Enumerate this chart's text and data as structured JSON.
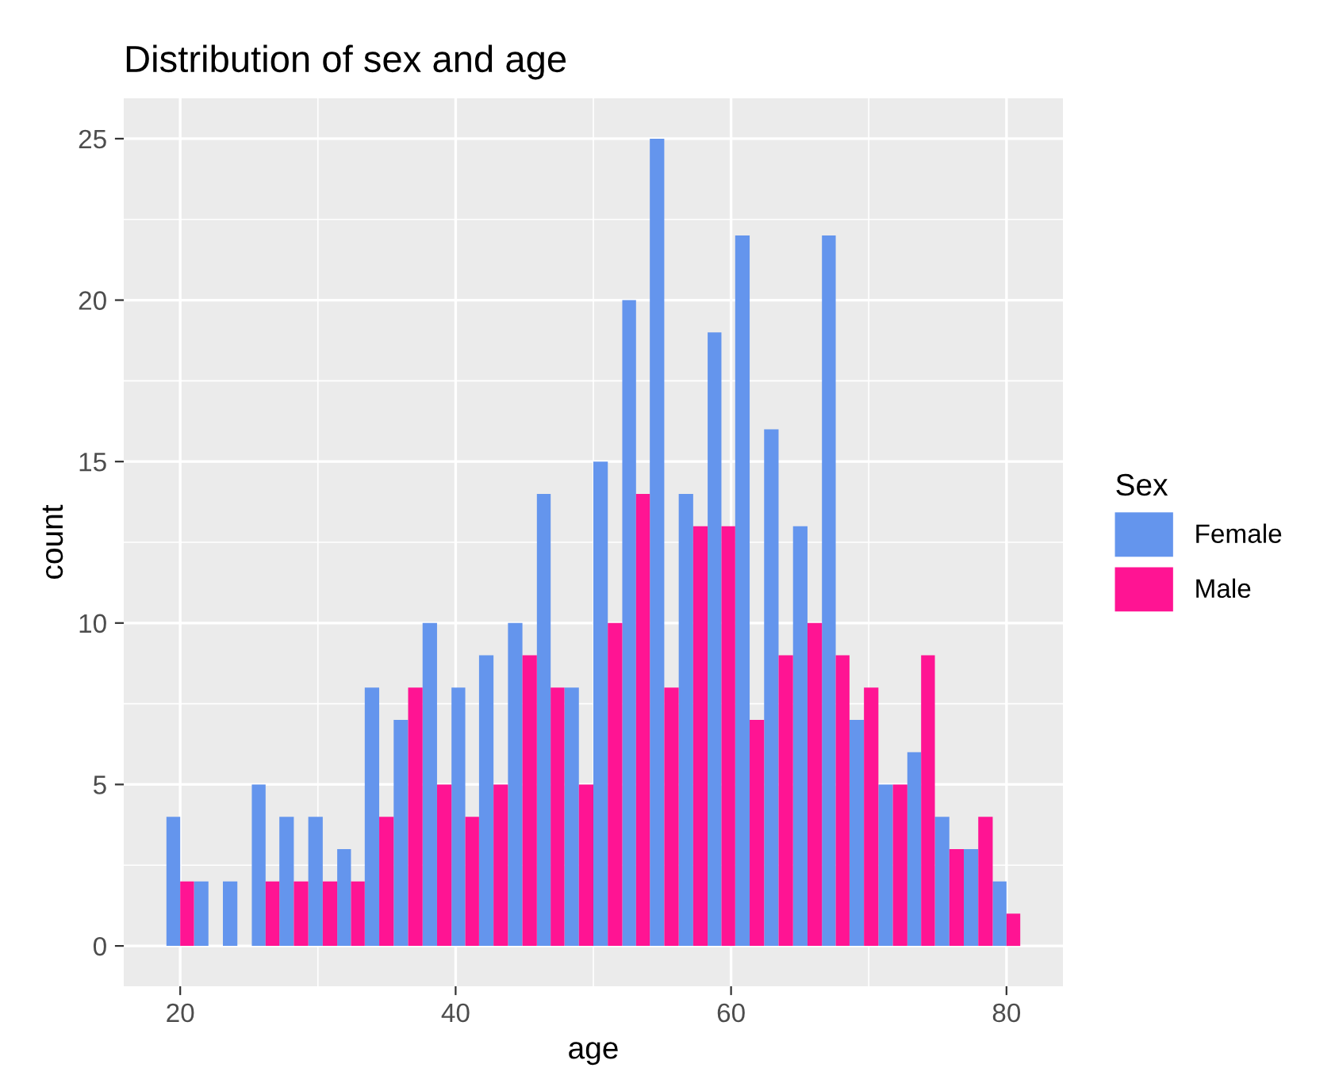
{
  "chart_data": {
    "type": "histogram",
    "title": "Distribution of sex and age",
    "xlabel": "age",
    "ylabel": "count",
    "legend_title": "Sex",
    "bins": [
      19.0,
      21.0,
      23.1,
      25.2,
      27.2,
      29.3,
      31.4,
      33.4,
      35.5,
      37.6,
      39.7,
      41.7,
      43.8,
      45.9,
      47.9,
      50.0,
      52.1,
      54.1,
      56.2,
      58.3,
      60.3,
      62.4,
      64.5,
      66.6,
      68.6,
      70.7,
      72.8,
      74.8,
      76.9,
      79.0,
      81.0
    ],
    "series": [
      {
        "name": "Female",
        "color": "#6495ed",
        "values": [
          4,
          2,
          2,
          5,
          4,
          4,
          3,
          8,
          7,
          10,
          8,
          9,
          10,
          14,
          8,
          15,
          20,
          25,
          14,
          19,
          22,
          16,
          13,
          22,
          7,
          5,
          6,
          4,
          3,
          2
        ]
      },
      {
        "name": "Male",
        "color": "#ff1493",
        "values": [
          2,
          0,
          0,
          2,
          2,
          2,
          2,
          4,
          8,
          5,
          4,
          5,
          9,
          8,
          5,
          10,
          14,
          8,
          13,
          13,
          7,
          9,
          10,
          9,
          8,
          5,
          9,
          3,
          4,
          1
        ]
      }
    ],
    "xlim": [
      15.9,
      84.1
    ],
    "xticks": [
      20,
      40,
      60,
      80
    ],
    "ylim": [
      -1.25,
      26.25
    ],
    "yticks": [
      0,
      5,
      10,
      15,
      20,
      25
    ],
    "grid": true,
    "legend": "right"
  }
}
